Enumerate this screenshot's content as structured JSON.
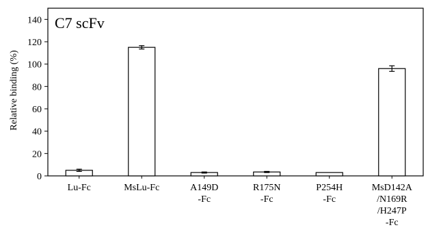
{
  "chart_data": {
    "type": "bar",
    "title": "C7 scFv",
    "ylabel": "Relative binding (%)",
    "xlabel": "",
    "ylim": [
      0,
      150
    ],
    "yticks": [
      0,
      20,
      40,
      60,
      80,
      100,
      120,
      140
    ],
    "grid": false,
    "categories": [
      [
        "Lu-Fc"
      ],
      [
        "MsLu-Fc"
      ],
      [
        "A149D",
        "-Fc"
      ],
      [
        "R175N",
        "-Fc"
      ],
      [
        "P254H",
        "-Fc"
      ],
      [
        "MsD142A",
        "/N169R",
        "/H247P",
        "-Fc"
      ]
    ],
    "values": [
      5,
      115,
      3,
      3.5,
      3,
      96
    ],
    "errors": [
      1,
      1.5,
      0.5,
      0.5,
      0,
      2.5
    ],
    "colors": {
      "bar_fill": "#ffffff",
      "bar_stroke": "#000000",
      "axis": "#000000"
    }
  }
}
